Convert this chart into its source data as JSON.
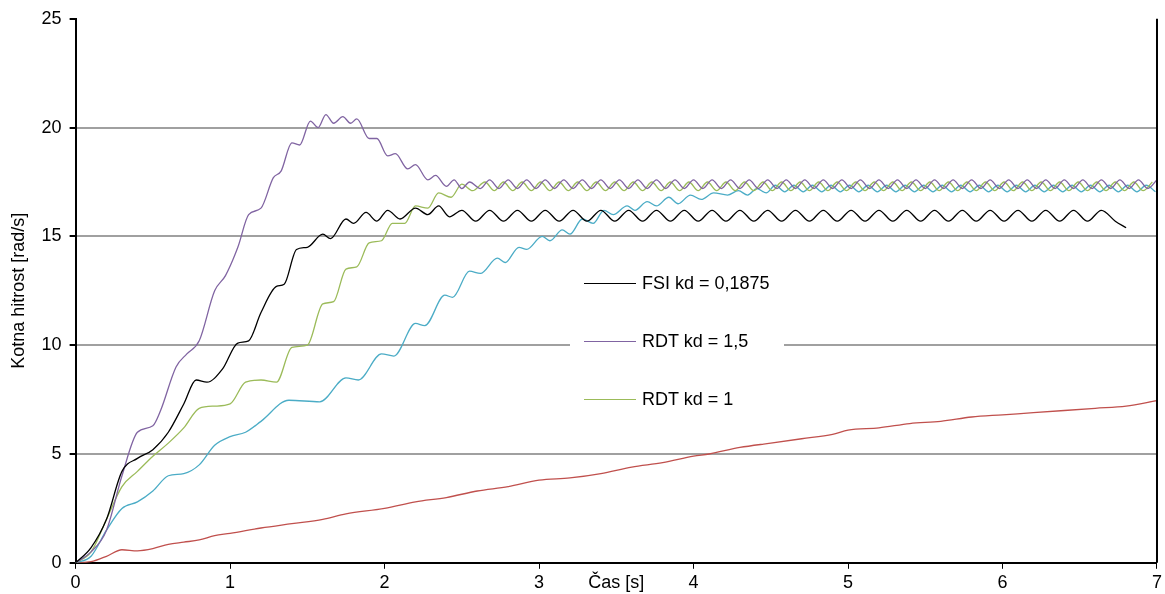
{
  "chart_data": {
    "type": "line",
    "xlabel": "Čas [s]",
    "ylabel": "Kotna hitrost [rad/s]",
    "xlim": [
      0,
      7
    ],
    "xticks": [
      0,
      1,
      2,
      3,
      4,
      5,
      6,
      7
    ],
    "ylim": [
      0,
      25
    ],
    "yticks": [
      0,
      5,
      10,
      15,
      20,
      25
    ],
    "grid": "y",
    "legend": "center",
    "marker": "none",
    "line_style": "solid",
    "series": [
      {
        "name": "FSI kd = 0,1875",
        "color": "#000000",
        "x": [
          0,
          0.1,
          0.2,
          0.3,
          0.4,
          0.5,
          0.6,
          0.7,
          0.78,
          0.85,
          0.95,
          1.05,
          1.12,
          1.2,
          1.3,
          1.35,
          1.43,
          1.5,
          1.6,
          1.65,
          1.75,
          1.8,
          1.88,
          1.95,
          2.02,
          2.1,
          2.2,
          2.28,
          2.35,
          2.42,
          2.5,
          2.59,
          2.68,
          2.77,
          2.86,
          2.95,
          3.04,
          3.13,
          3.22,
          3.31,
          3.4,
          3.49,
          3.58,
          3.67,
          3.76,
          3.85,
          3.94,
          4.03,
          4.12,
          4.21,
          4.3,
          4.39,
          4.48,
          4.57,
          4.66,
          4.75,
          4.84,
          4.93,
          5.02,
          5.11,
          5.2,
          5.29,
          5.38,
          5.47,
          5.56,
          5.65,
          5.74,
          5.83,
          5.92,
          6.01,
          6.1,
          6.19,
          6.28,
          6.37,
          6.46,
          6.55,
          6.64,
          6.73,
          6.8
        ],
        "values": [
          0,
          0.7,
          2,
          4.2,
          4.8,
          5.2,
          6,
          7.3,
          8.4,
          8.3,
          8.9,
          10.1,
          10.2,
          11.5,
          12.7,
          12.8,
          14.4,
          14.5,
          15.1,
          14.9,
          15.8,
          15.6,
          16.1,
          15.7,
          16.2,
          15.8,
          16.3,
          16,
          16.4,
          15.9,
          16.2,
          15.7,
          16.2,
          15.7,
          16.2,
          15.7,
          16.2,
          15.7,
          16.2,
          15.7,
          16.2,
          15.7,
          16.2,
          15.7,
          16.2,
          15.7,
          16.2,
          15.7,
          16.2,
          15.7,
          16.2,
          15.7,
          16.2,
          15.7,
          16.2,
          15.7,
          16.2,
          15.7,
          16.2,
          15.7,
          16.2,
          15.7,
          16.2,
          15.7,
          16.2,
          15.7,
          16.2,
          15.7,
          16.2,
          15.7,
          16.2,
          15.7,
          16.2,
          15.7,
          16.2,
          15.7,
          16.2,
          15.7,
          15.4
        ]
      },
      {
        "name": "RDT kd = 1,5",
        "color": "#8064a2",
        "x": [
          0,
          0.1,
          0.2,
          0.3,
          0.4,
          0.5,
          0.55,
          0.65,
          0.72,
          0.8,
          0.9,
          0.97,
          1.05,
          1.12,
          1.2,
          1.28,
          1.33,
          1.4,
          1.45,
          1.52,
          1.57,
          1.62,
          1.67,
          1.73,
          1.78,
          1.82,
          1.9,
          1.95,
          2.02,
          2.07,
          2.15,
          2.2,
          2.28,
          2.33,
          2.4,
          2.45,
          2.5,
          2.55,
          2.62,
          2.68,
          2.74,
          2.8,
          2.86,
          2.92,
          2.98,
          3.04,
          3.1,
          3.16,
          3.22,
          3.28,
          3.34,
          3.4,
          3.46,
          3.52,
          3.58,
          3.64,
          3.7,
          3.76,
          3.82,
          3.88,
          3.94,
          4,
          4.06,
          4.12,
          4.18,
          4.24,
          4.3,
          4.36,
          4.42,
          4.48,
          4.54,
          4.6,
          4.66,
          4.72,
          4.78,
          4.84,
          4.9,
          4.96,
          5.02,
          5.08,
          5.14,
          5.2,
          5.26,
          5.32,
          5.38,
          5.44,
          5.5,
          5.56,
          5.62,
          5.68,
          5.74,
          5.8,
          5.86,
          5.92,
          5.98,
          6.04,
          6.1,
          6.16,
          6.22,
          6.28,
          6.34,
          6.4,
          6.46,
          6.52,
          6.58,
          6.64,
          6.7,
          6.76,
          6.82,
          6.88,
          6.94,
          7
        ],
        "values": [
          0,
          0.5,
          1.5,
          4,
          6,
          6.3,
          7,
          9,
          9.6,
          10.2,
          12.5,
          13.2,
          14.5,
          16,
          16.3,
          17.7,
          18,
          19.3,
          19.2,
          20.3,
          20,
          20.6,
          20.2,
          20.5,
          20.2,
          20.4,
          19.5,
          19.5,
          18.7,
          18.8,
          18.1,
          18.3,
          17.6,
          17.8,
          17.3,
          17.6,
          17.2,
          17.5,
          17.2,
          17.6,
          17.2,
          17.6,
          17.2,
          17.6,
          17.2,
          17.6,
          17.2,
          17.6,
          17.2,
          17.6,
          17.2,
          17.6,
          17.2,
          17.6,
          17.2,
          17.6,
          17.2,
          17.6,
          17.2,
          17.6,
          17.2,
          17.6,
          17.2,
          17.6,
          17.2,
          17.6,
          17.2,
          17.6,
          17.2,
          17.6,
          17.2,
          17.6,
          17.2,
          17.6,
          17.2,
          17.6,
          17.2,
          17.6,
          17.2,
          17.6,
          17.2,
          17.6,
          17.2,
          17.6,
          17.2,
          17.6,
          17.2,
          17.6,
          17.2,
          17.6,
          17.2,
          17.6,
          17.2,
          17.6,
          17.2,
          17.6,
          17.2,
          17.6,
          17.2,
          17.6,
          17.2,
          17.6,
          17.2,
          17.6,
          17.2,
          17.6,
          17.2,
          17.6,
          17.2,
          17.6,
          17.2,
          17.6
        ]
      },
      {
        "name": "RDT kd = 1",
        "color": "#9bbb59",
        "x": [
          0,
          0.1,
          0.2,
          0.3,
          0.4,
          0.5,
          0.6,
          0.7,
          0.8,
          0.9,
          1,
          1.1,
          1.2,
          1.3,
          1.4,
          1.5,
          1.6,
          1.67,
          1.75,
          1.82,
          1.9,
          1.98,
          2.05,
          2.13,
          2.2,
          2.28,
          2.35,
          2.43,
          2.5,
          2.57,
          2.65,
          2.71,
          2.77,
          2.83,
          2.89,
          2.95,
          3.01,
          3.07,
          3.13,
          3.19,
          3.25,
          3.31,
          3.37,
          3.43,
          3.49,
          3.55,
          3.61,
          3.67,
          3.73,
          3.79,
          3.85,
          3.91,
          3.97,
          4.03,
          4.09,
          4.15,
          4.21,
          4.27,
          4.33,
          4.39,
          4.45,
          4.51,
          4.57,
          4.63,
          4.69,
          4.75,
          4.81,
          4.87,
          4.93,
          4.99,
          5.05,
          5.11,
          5.17,
          5.23,
          5.29,
          5.35,
          5.41,
          5.47,
          5.53,
          5.59,
          5.65,
          5.71,
          5.77,
          5.83,
          5.89,
          5.95,
          6.01,
          6.07,
          6.13,
          6.19,
          6.25,
          6.31,
          6.37,
          6.43,
          6.49,
          6.55,
          6.61,
          6.67,
          6.73,
          6.79,
          6.85,
          6.91,
          6.97
        ],
        "values": [
          0,
          0.5,
          2,
          3.5,
          4.2,
          4.9,
          5.5,
          6.2,
          7.1,
          7.2,
          7.3,
          8.3,
          8.4,
          8.3,
          9.9,
          10,
          11.9,
          12,
          13.5,
          13.6,
          14.7,
          14.8,
          15.6,
          15.6,
          16.4,
          16.3,
          17,
          16.8,
          17.4,
          17.1,
          17.5,
          17.1,
          17.5,
          17.1,
          17.5,
          17.1,
          17.5,
          17.1,
          17.5,
          17.1,
          17.5,
          17.1,
          17.5,
          17.1,
          17.5,
          17.1,
          17.5,
          17.1,
          17.5,
          17.1,
          17.5,
          17.1,
          17.5,
          17.1,
          17.5,
          17.1,
          17.5,
          17.1,
          17.5,
          17.1,
          17.5,
          17.1,
          17.5,
          17.1,
          17.5,
          17.1,
          17.5,
          17.1,
          17.5,
          17.1,
          17.5,
          17.1,
          17.5,
          17.1,
          17.5,
          17.1,
          17.5,
          17.1,
          17.5,
          17.1,
          17.5,
          17.1,
          17.5,
          17.1,
          17.5,
          17.1,
          17.5,
          17.1,
          17.5,
          17.1,
          17.5,
          17.1,
          17.5,
          17.1,
          17.5,
          17.1,
          17.5,
          17.1,
          17.5,
          17.1,
          17.5,
          17.1,
          17.5
        ]
      },
      {
        "color": "#4bacc6",
        "x": [
          0,
          0.1,
          0.2,
          0.3,
          0.4,
          0.5,
          0.6,
          0.7,
          0.8,
          0.9,
          1,
          1.1,
          1.2,
          1.38,
          1.58,
          1.75,
          1.83,
          1.98,
          2.06,
          2.2,
          2.26,
          2.39,
          2.44,
          2.55,
          2.62,
          2.73,
          2.78,
          2.87,
          2.92,
          3.02,
          3.07,
          3.15,
          3.2,
          3.28,
          3.35,
          3.42,
          3.48,
          3.57,
          3.62,
          3.7,
          3.76,
          3.84,
          3.9,
          3.98,
          4.05,
          4.13,
          4.22,
          4.29,
          4.35,
          4.41,
          4.47,
          4.53,
          4.59,
          4.65,
          4.71,
          4.77,
          4.83,
          4.89,
          4.95,
          5.01,
          5.07,
          5.13,
          5.19,
          5.25,
          5.31,
          5.37,
          5.43,
          5.49,
          5.55,
          5.61,
          5.67,
          5.73,
          5.79,
          5.85,
          5.91,
          5.97,
          6.03,
          6.09,
          6.15,
          6.21,
          6.27,
          6.33,
          6.39,
          6.45,
          6.51,
          6.57,
          6.63,
          6.69,
          6.75,
          6.81,
          6.87,
          6.93,
          6.99
        ],
        "values": [
          0,
          0.3,
          1.5,
          2.5,
          2.8,
          3.3,
          4,
          4.1,
          4.5,
          5.4,
          5.8,
          6,
          6.5,
          7.47,
          7.4,
          8.5,
          8.4,
          9.6,
          9.5,
          11,
          10.9,
          12.3,
          12.2,
          13.4,
          13.3,
          14,
          13.8,
          14.5,
          14.4,
          15,
          14.8,
          15.3,
          15.1,
          15.8,
          15.6,
          16.2,
          16,
          16.4,
          16.2,
          16.6,
          16.4,
          16.8,
          16.5,
          16.9,
          16.7,
          17,
          16.9,
          17.1,
          16.9,
          17.2,
          17,
          17.35,
          17.05,
          17.35,
          17.05,
          17.35,
          17.05,
          17.35,
          17.05,
          17.35,
          17.05,
          17.35,
          17.05,
          17.35,
          17.05,
          17.35,
          17.05,
          17.35,
          17.05,
          17.35,
          17.05,
          17.35,
          17.05,
          17.35,
          17.05,
          17.35,
          17.05,
          17.35,
          17.05,
          17.35,
          17.05,
          17.35,
          17.05,
          17.35,
          17.05,
          17.35,
          17.05,
          17.35,
          17.05,
          17.35,
          17.05,
          17.35,
          17.05
        ]
      },
      {
        "color": "#c0504d",
        "x": [
          0,
          0.1,
          0.2,
          0.3,
          0.4,
          0.5,
          0.6,
          0.7,
          0.8,
          0.9,
          1,
          1.2,
          1.4,
          1.6,
          1.75,
          2,
          2.2,
          2.4,
          2.6,
          2.8,
          3,
          3.2,
          3.4,
          3.6,
          3.8,
          4,
          4.1,
          4.3,
          4.5,
          4.7,
          4.9,
          5,
          5.2,
          5.4,
          5.6,
          5.8,
          6,
          6.2,
          6.4,
          6.6,
          6.8,
          7
        ],
        "values": [
          0,
          0.05,
          0.3,
          0.6,
          0.55,
          0.65,
          0.85,
          0.95,
          1.05,
          1.25,
          1.35,
          1.6,
          1.8,
          2,
          2.25,
          2.5,
          2.8,
          3,
          3.3,
          3.5,
          3.8,
          3.9,
          4.1,
          4.4,
          4.6,
          4.9,
          5,
          5.3,
          5.5,
          5.7,
          5.9,
          6.1,
          6.2,
          6.4,
          6.5,
          6.7,
          6.8,
          6.9,
          7,
          7.1,
          7.2,
          7.45
        ]
      }
    ]
  }
}
